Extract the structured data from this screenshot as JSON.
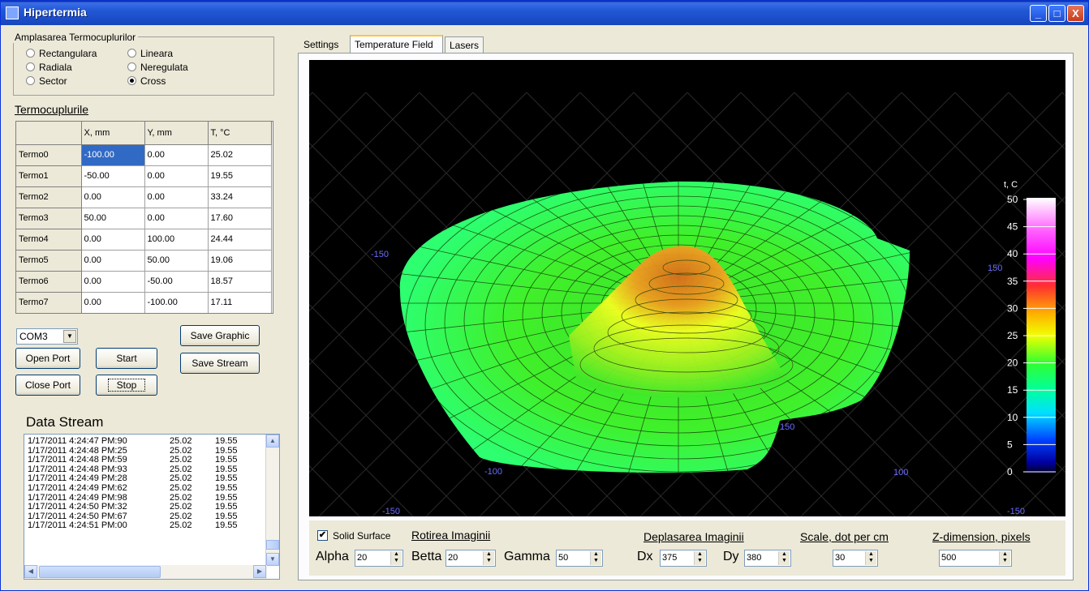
{
  "window": {
    "title": "Hipertermia",
    "minimize": "_",
    "maximize": "□",
    "close": "X"
  },
  "groupbox": {
    "title": "Amplasarea Termocuplurilor",
    "options": [
      {
        "label": "Rectangulara",
        "checked": false
      },
      {
        "label": "Lineara",
        "checked": false
      },
      {
        "label": "Radiala",
        "checked": false
      },
      {
        "label": "Neregulata",
        "checked": false
      },
      {
        "label": "Sector",
        "checked": false
      },
      {
        "label": "Cross",
        "checked": true
      }
    ]
  },
  "termo": {
    "title": "Termocuplurile",
    "headers": [
      "",
      "X, mm",
      "Y, mm",
      "T, °C"
    ],
    "rows": [
      [
        "Termo0",
        "-100.00",
        "0.00",
        "25.02"
      ],
      [
        "Termo1",
        "-50.00",
        "0.00",
        "19.55"
      ],
      [
        "Termo2",
        "0.00",
        "0.00",
        "33.24"
      ],
      [
        "Termo3",
        "50.00",
        "0.00",
        "17.60"
      ],
      [
        "Termo4",
        "0.00",
        "100.00",
        "24.44"
      ],
      [
        "Termo5",
        "0.00",
        "50.00",
        "19.06"
      ],
      [
        "Termo6",
        "0.00",
        "-50.00",
        "18.57"
      ],
      [
        "Termo7",
        "0.00",
        "-100.00",
        "17.11"
      ]
    ]
  },
  "port": {
    "selected": "COM3",
    "open": "Open Port",
    "close": "Close Port",
    "start": "Start",
    "stop": "Stop",
    "save_graphic": "Save Graphic",
    "save_stream": "Save Stream"
  },
  "stream": {
    "title": "Data Stream",
    "lines": [
      [
        "1/17/2011 4:24:47 PM:90",
        "25.02",
        "19.55"
      ],
      [
        "1/17/2011 4:24:48 PM:25",
        "25.02",
        "19.55"
      ],
      [
        "1/17/2011 4:24:48 PM:59",
        "25.02",
        "19.55"
      ],
      [
        "1/17/2011 4:24:48 PM:93",
        "25.02",
        "19.55"
      ],
      [
        "1/17/2011 4:24:49 PM:28",
        "25.02",
        "19.55"
      ],
      [
        "1/17/2011 4:24:49 PM:62",
        "25.02",
        "19.55"
      ],
      [
        "1/17/2011 4:24:49 PM:98",
        "25.02",
        "19.55"
      ],
      [
        "1/17/2011 4:24:50 PM:32",
        "25.02",
        "19.55"
      ],
      [
        "1/17/2011 4:24:50 PM:67",
        "25.02",
        "19.55"
      ],
      [
        "1/17/2011 4:24:51 PM:00",
        "25.02",
        "19.55"
      ]
    ]
  },
  "tabs": [
    "Settings",
    "Temperature Field",
    "Lasers"
  ],
  "plot": {
    "axis_labels": [
      "-150",
      "150",
      "-150",
      "150",
      "-100",
      "100",
      "-150"
    ],
    "colorbar": {
      "title": "t, C",
      "ticks": [
        "50",
        "45",
        "40",
        "35",
        "30",
        "25",
        "20",
        "15",
        "10",
        "5",
        "0"
      ]
    }
  },
  "controls": {
    "solid_surface": "Solid Surface",
    "rotire_title": "Rotirea Imaginii",
    "alpha_label": "Alpha",
    "alpha": "20",
    "betta_label": "Betta",
    "betta": "20",
    "gamma_label": "Gamma",
    "gamma": "50",
    "deplasare_title": "Deplasarea Imaginii",
    "dx_label": "Dx",
    "dx": "375",
    "dy_label": "Dy",
    "dy": "380",
    "scale_title": "Scale, dot per cm",
    "scale": "30",
    "z_title": "Z-dimension, pixels",
    "z": "500"
  },
  "colors": {
    "title_blue": "#2257D5",
    "field_green": "#3CF02A",
    "peak_orange": "#E8791E"
  }
}
